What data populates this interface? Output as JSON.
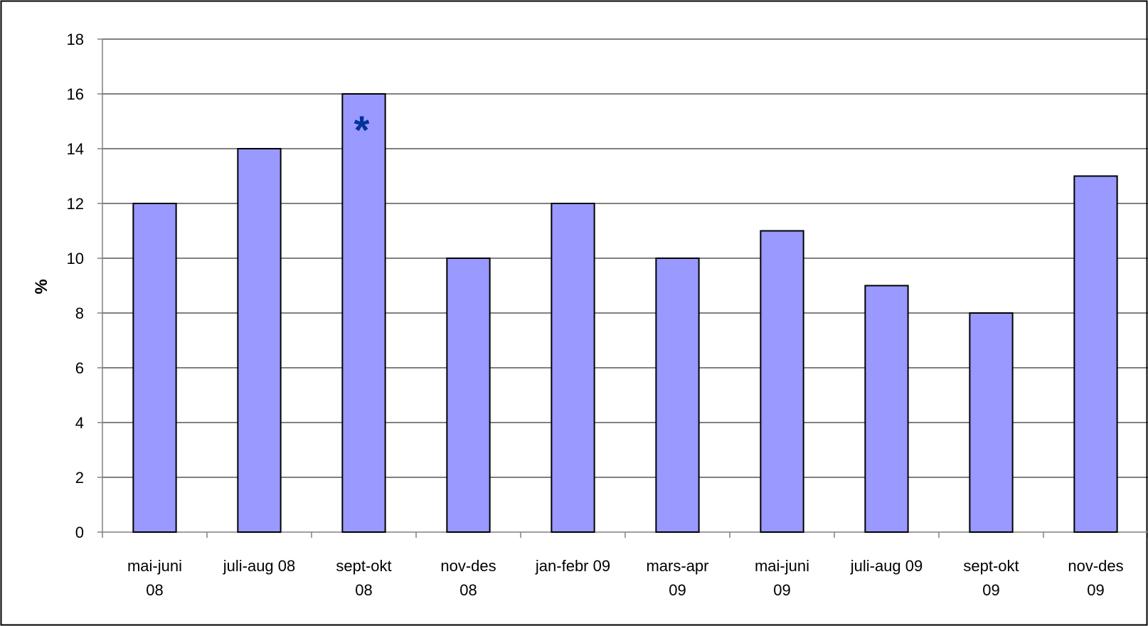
{
  "chart_data": {
    "type": "bar",
    "ylabel": "%",
    "xlabel": "",
    "title": "",
    "ylim": [
      0,
      18
    ],
    "yticks": [
      0,
      2,
      4,
      6,
      8,
      10,
      12,
      14,
      16,
      18
    ],
    "grid": true,
    "legend": "none",
    "categories": [
      [
        "mai-juni",
        "08"
      ],
      [
        "juli-aug 08"
      ],
      [
        "sept-okt",
        "08"
      ],
      [
        "nov-des",
        "08"
      ],
      [
        "jan-febr 09"
      ],
      [
        "mars-apr",
        "09"
      ],
      [
        "mai-juni",
        "09"
      ],
      [
        "juli-aug 09"
      ],
      [
        "sept-okt",
        "09"
      ],
      [
        "nov-des",
        "09"
      ]
    ],
    "values": [
      12,
      14,
      16,
      10,
      12,
      10,
      11,
      9,
      8,
      13
    ],
    "annotations": [
      {
        "category_index": 2,
        "text": "*"
      }
    ],
    "colors": {
      "bar_fill": "#9999ff",
      "bar_stroke": "#000000",
      "grid": "#000000",
      "axis": "#808080",
      "annotation": "#003399",
      "frame": "#000000"
    }
  }
}
